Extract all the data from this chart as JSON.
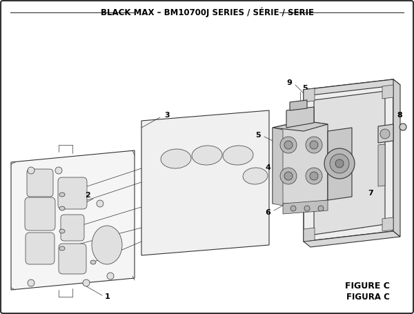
{
  "title": "BLACK MAX – BM10700J SERIES / SÉRIE / SERIE",
  "figure_label_line1": "FIGURE C",
  "figure_label_line2": "FIGURA C",
  "bg_color": "#ffffff",
  "line_color": "#333333",
  "text_color": "#000000",
  "title_fontsize": 8.5,
  "label_fontsize": 8,
  "figure_label_fontsize": 9
}
